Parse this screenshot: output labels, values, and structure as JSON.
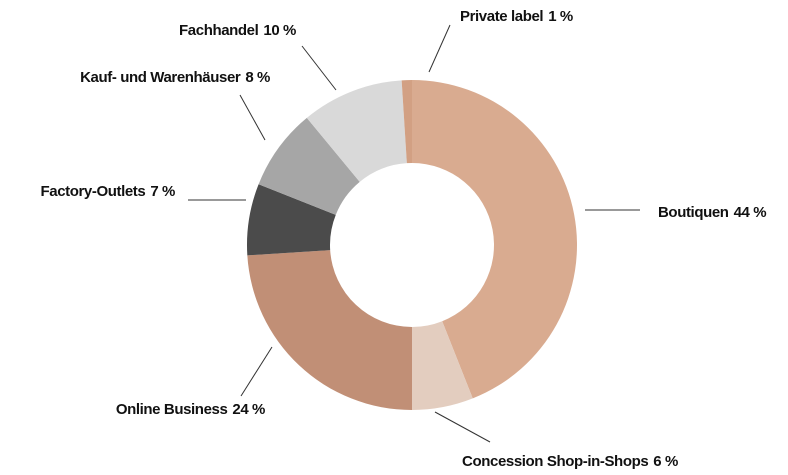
{
  "chart_data": {
    "type": "donut",
    "categories": [
      "Boutiquen",
      "Concession Shop-in-Shops",
      "Online Business",
      "Factory-Outlets",
      "Kauf- und Warenhäuser",
      "Fachhandel",
      "Private label"
    ],
    "values": [
      44,
      6,
      24,
      7,
      8,
      10,
      1
    ],
    "value_labels": [
      "44 %",
      "6 %",
      "24 %",
      "7 %",
      "8 %",
      "10 %",
      "1 %"
    ],
    "colors": [
      "#d9ab90",
      "#e3cdbf",
      "#c18f76",
      "#4b4b4b",
      "#a6a6a6",
      "#d9d9d9",
      "#d2a083"
    ]
  }
}
